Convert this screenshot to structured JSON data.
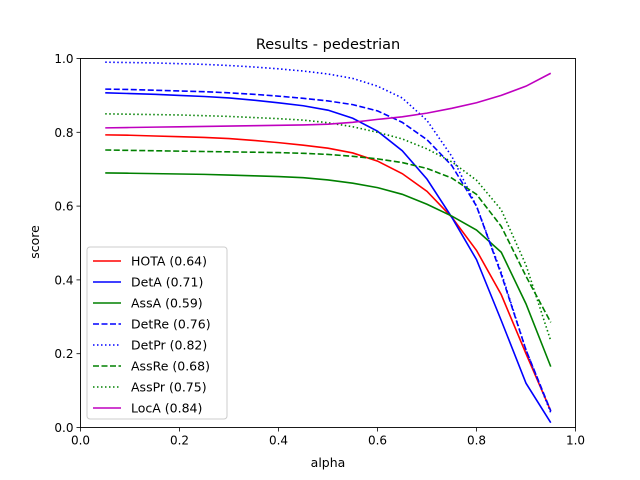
{
  "chart_data": {
    "type": "line",
    "title": "Results - pedestrian",
    "xlabel": "alpha",
    "ylabel": "score",
    "xlim": [
      0.0,
      1.0
    ],
    "ylim": [
      0.0,
      1.0
    ],
    "xticks": [
      "0.0",
      "0.2",
      "0.4",
      "0.6",
      "0.8",
      "1.0"
    ],
    "yticks": [
      "0.0",
      "0.2",
      "0.4",
      "0.6",
      "0.8",
      "1.0"
    ],
    "grid": false,
    "legend_position": "lower-left",
    "x": [
      0.05,
      0.1,
      0.15,
      0.2,
      0.25,
      0.3,
      0.35,
      0.4,
      0.45,
      0.5,
      0.55,
      0.6,
      0.65,
      0.7,
      0.75,
      0.8,
      0.85,
      0.9,
      0.95
    ],
    "series": [
      {
        "name": "HOTA (0.64)",
        "color": "#ff0000",
        "dash": "solid",
        "values": [
          0.793,
          0.792,
          0.79,
          0.788,
          0.786,
          0.783,
          0.778,
          0.772,
          0.765,
          0.757,
          0.744,
          0.722,
          0.688,
          0.64,
          0.57,
          0.48,
          0.36,
          0.2,
          0.045
        ]
      },
      {
        "name": "DetA (0.71)",
        "color": "#0000ff",
        "dash": "solid",
        "values": [
          0.907,
          0.905,
          0.903,
          0.9,
          0.897,
          0.893,
          0.887,
          0.88,
          0.872,
          0.86,
          0.838,
          0.803,
          0.75,
          0.673,
          0.57,
          0.455,
          0.29,
          0.12,
          0.013
        ]
      },
      {
        "name": "AssA (0.59)",
        "color": "#008000",
        "dash": "solid",
        "values": [
          0.69,
          0.689,
          0.688,
          0.687,
          0.686,
          0.684,
          0.682,
          0.68,
          0.677,
          0.671,
          0.662,
          0.65,
          0.632,
          0.605,
          0.573,
          0.535,
          0.475,
          0.335,
          0.165
        ]
      },
      {
        "name": "DetRe (0.76)",
        "color": "#0000ff",
        "dash": "dashed",
        "values": [
          0.917,
          0.916,
          0.914,
          0.912,
          0.91,
          0.907,
          0.903,
          0.898,
          0.892,
          0.885,
          0.875,
          0.858,
          0.827,
          0.78,
          0.71,
          0.6,
          0.415,
          0.21,
          0.045
        ]
      },
      {
        "name": "DetPr (0.82)",
        "color": "#0000ff",
        "dash": "dotted",
        "values": [
          0.99,
          0.989,
          0.988,
          0.986,
          0.984,
          0.981,
          0.977,
          0.972,
          0.966,
          0.958,
          0.946,
          0.925,
          0.893,
          0.832,
          0.735,
          0.6,
          0.42,
          0.21,
          0.04
        ]
      },
      {
        "name": "AssRe (0.68)",
        "color": "#008000",
        "dash": "dashed",
        "values": [
          0.752,
          0.751,
          0.75,
          0.749,
          0.748,
          0.747,
          0.746,
          0.745,
          0.743,
          0.74,
          0.735,
          0.728,
          0.718,
          0.702,
          0.676,
          0.632,
          0.545,
          0.41,
          0.285
        ]
      },
      {
        "name": "AssPr (0.75)",
        "color": "#008000",
        "dash": "dotted",
        "values": [
          0.85,
          0.849,
          0.848,
          0.847,
          0.845,
          0.843,
          0.84,
          0.837,
          0.833,
          0.826,
          0.815,
          0.8,
          0.782,
          0.755,
          0.72,
          0.67,
          0.59,
          0.44,
          0.235
        ]
      },
      {
        "name": "LocA (0.84)",
        "color": "#bf00bf",
        "dash": "solid",
        "values": [
          0.812,
          0.813,
          0.814,
          0.815,
          0.816,
          0.817,
          0.818,
          0.819,
          0.82,
          0.822,
          0.827,
          0.835,
          0.842,
          0.852,
          0.865,
          0.88,
          0.9,
          0.925,
          0.96
        ]
      }
    ]
  }
}
